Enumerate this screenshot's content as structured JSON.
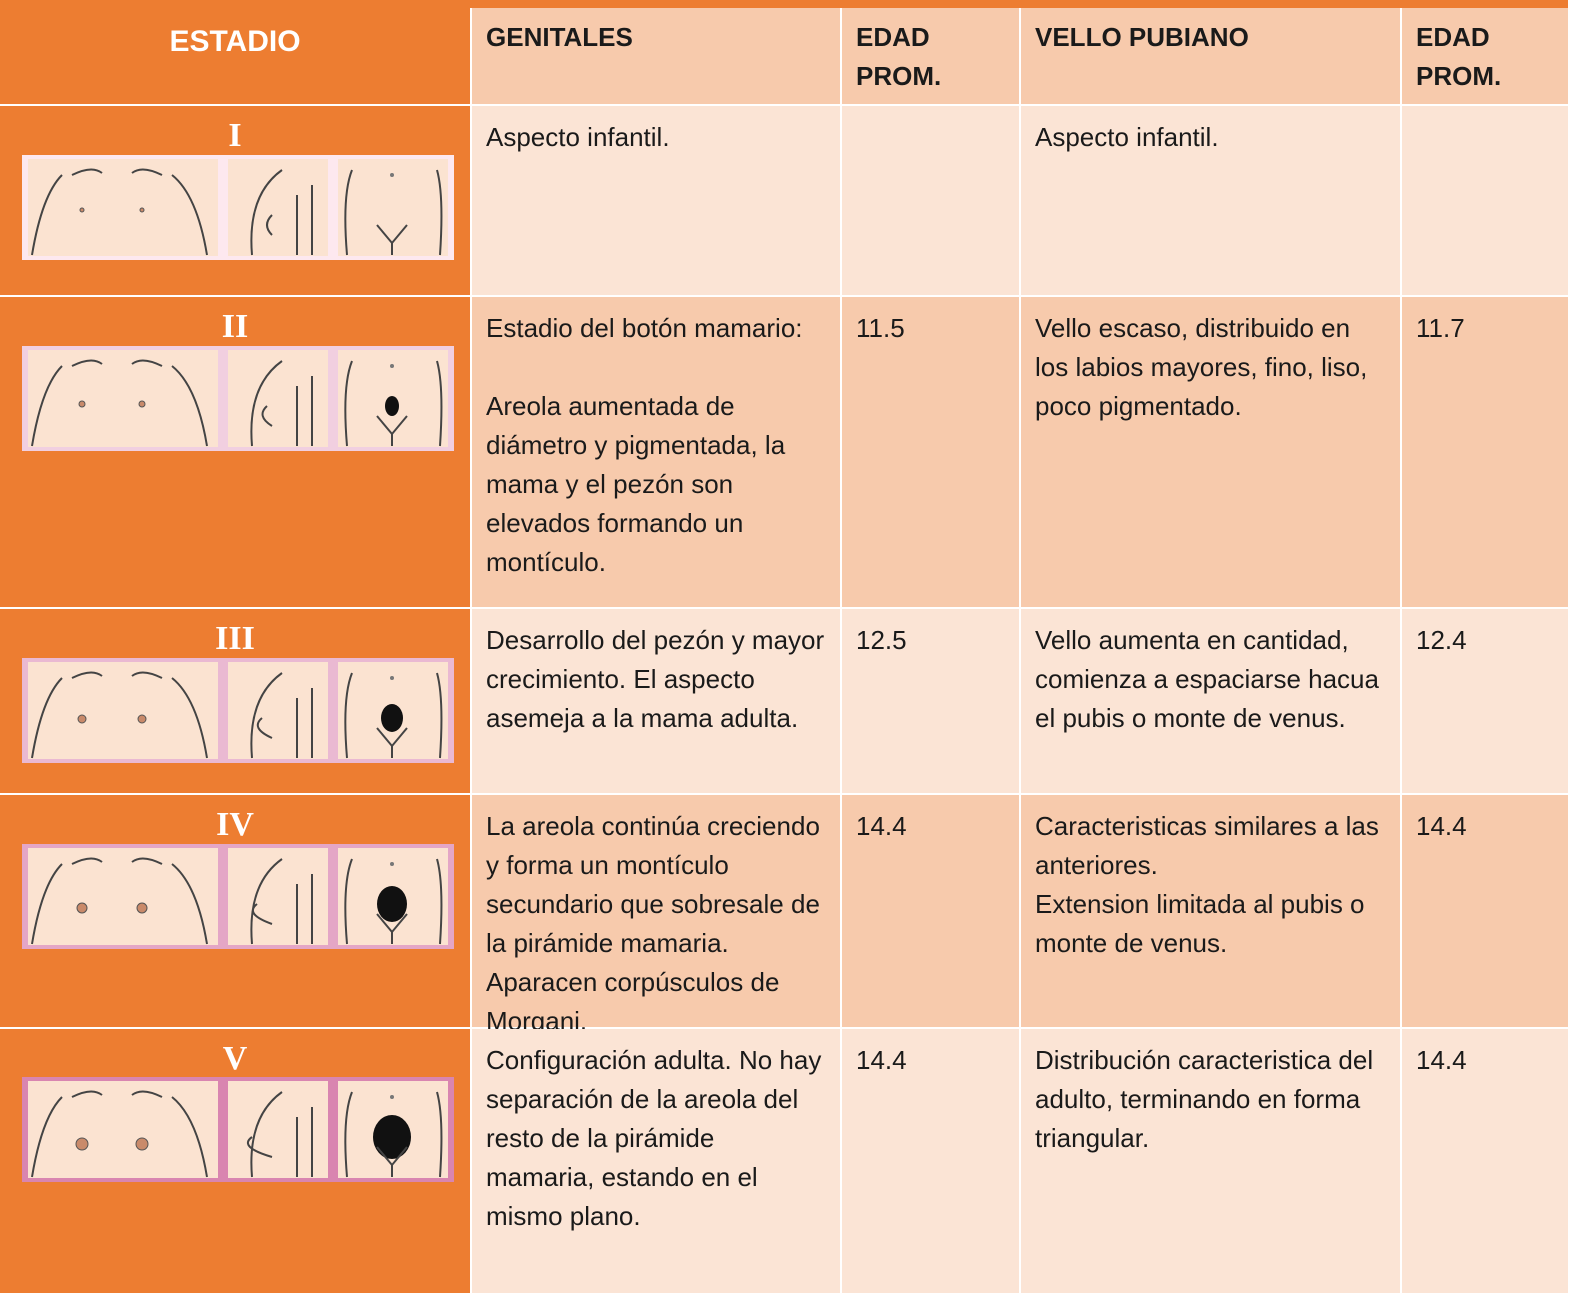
{
  "table": {
    "header": [
      "ESTADIO",
      "GENITALES",
      "EDAD PROM.",
      "VELLO PUBIANO",
      "EDAD PROM."
    ],
    "rows": [
      {
        "estadio": "I",
        "genitales": [
          "Aspecto infantil."
        ],
        "edad1": null,
        "vello": [
          "Aspecto infantil."
        ],
        "edad2": null
      },
      {
        "estadio": "II",
        "genitales": [
          "Estadio del botón mamario:",
          "Areola aumentada de diámetro y pigmentada, la mama y el pezón son elevados formando un montículo."
        ],
        "edad1": "11.5",
        "vello": [
          "Vello escaso, distribuido en los labios mayores, fino, liso, poco pigmentado."
        ],
        "edad2": "11.7"
      },
      {
        "estadio": "III",
        "genitales": [
          "Desarrollo del pezón y mayor crecimiento. El aspecto asemeja a la mama adulta."
        ],
        "edad1": "12.5",
        "vello": [
          "Vello aumenta en cantidad, comienza a espaciarse hacua el pubis o monte de venus."
        ],
        "edad2": "12.4"
      },
      {
        "estadio": "IV",
        "genitales": [
          "La areola continúa creciendo y forma un montículo secundario que sobresale de la pirámide mamaria. Aparacen corpúsculos de Morgani."
        ],
        "edad1": "14.4",
        "vello": [
          "Caracteristicas similares a las anteriores.",
          "Extension limitada al pubis o monte de venus."
        ],
        "edad2": "14.4"
      },
      {
        "estadio": "V",
        "genitales": [
          "Configuración adulta. No hay separación de la areola del resto de la pirámide mamaria, estando en el mismo plano."
        ],
        "edad1": "14.4",
        "vello": [
          "Distribución caracteristica del adulto, terminando en forma triangular."
        ],
        "edad2": "14.4"
      }
    ]
  }
}
